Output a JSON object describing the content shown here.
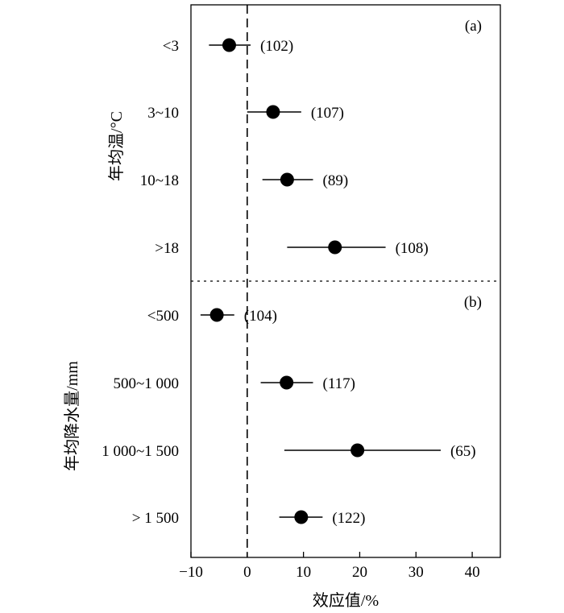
{
  "chart_data": {
    "type": "forest",
    "xlabel": "效应值/%",
    "xlim": [
      -10,
      45
    ],
    "x_ticks": [
      -10,
      0,
      10,
      20,
      30,
      40
    ],
    "reference_line_x": 0,
    "panels": [
      {
        "id": "a",
        "panel_label": "(a)",
        "ylabel": "年均温/°C",
        "rows": [
          {
            "label": "<3",
            "mean": -3.2,
            "ci_low": -6.8,
            "ci_high": 0.6,
            "n_label": "(102)"
          },
          {
            "label": "3~10",
            "mean": 4.6,
            "ci_low": 0.0,
            "ci_high": 9.6,
            "n_label": "(107)"
          },
          {
            "label": "10~18",
            "mean": 7.1,
            "ci_low": 2.7,
            "ci_high": 11.7,
            "n_label": "(89)"
          },
          {
            "label": ">18",
            "mean": 15.6,
            "ci_low": 7.1,
            "ci_high": 24.6,
            "n_label": "(108)"
          }
        ]
      },
      {
        "id": "b",
        "panel_label": "(b)",
        "ylabel": "年均降水量/mm",
        "rows": [
          {
            "label": "<500",
            "mean": -5.4,
            "ci_low": -8.3,
            "ci_high": -2.3,
            "n_label": "(104)"
          },
          {
            "label": "500~1 000",
            "mean": 7.0,
            "ci_low": 2.4,
            "ci_high": 11.7,
            "n_label": "(117)"
          },
          {
            "label": "1 000~1 500",
            "mean": 19.6,
            "ci_low": 6.6,
            "ci_high": 34.4,
            "n_label": "(65)"
          },
          {
            "label": "> 1 500",
            "mean": 9.6,
            "ci_low": 5.7,
            "ci_high": 13.4,
            "n_label": "(122)"
          }
        ]
      }
    ]
  }
}
